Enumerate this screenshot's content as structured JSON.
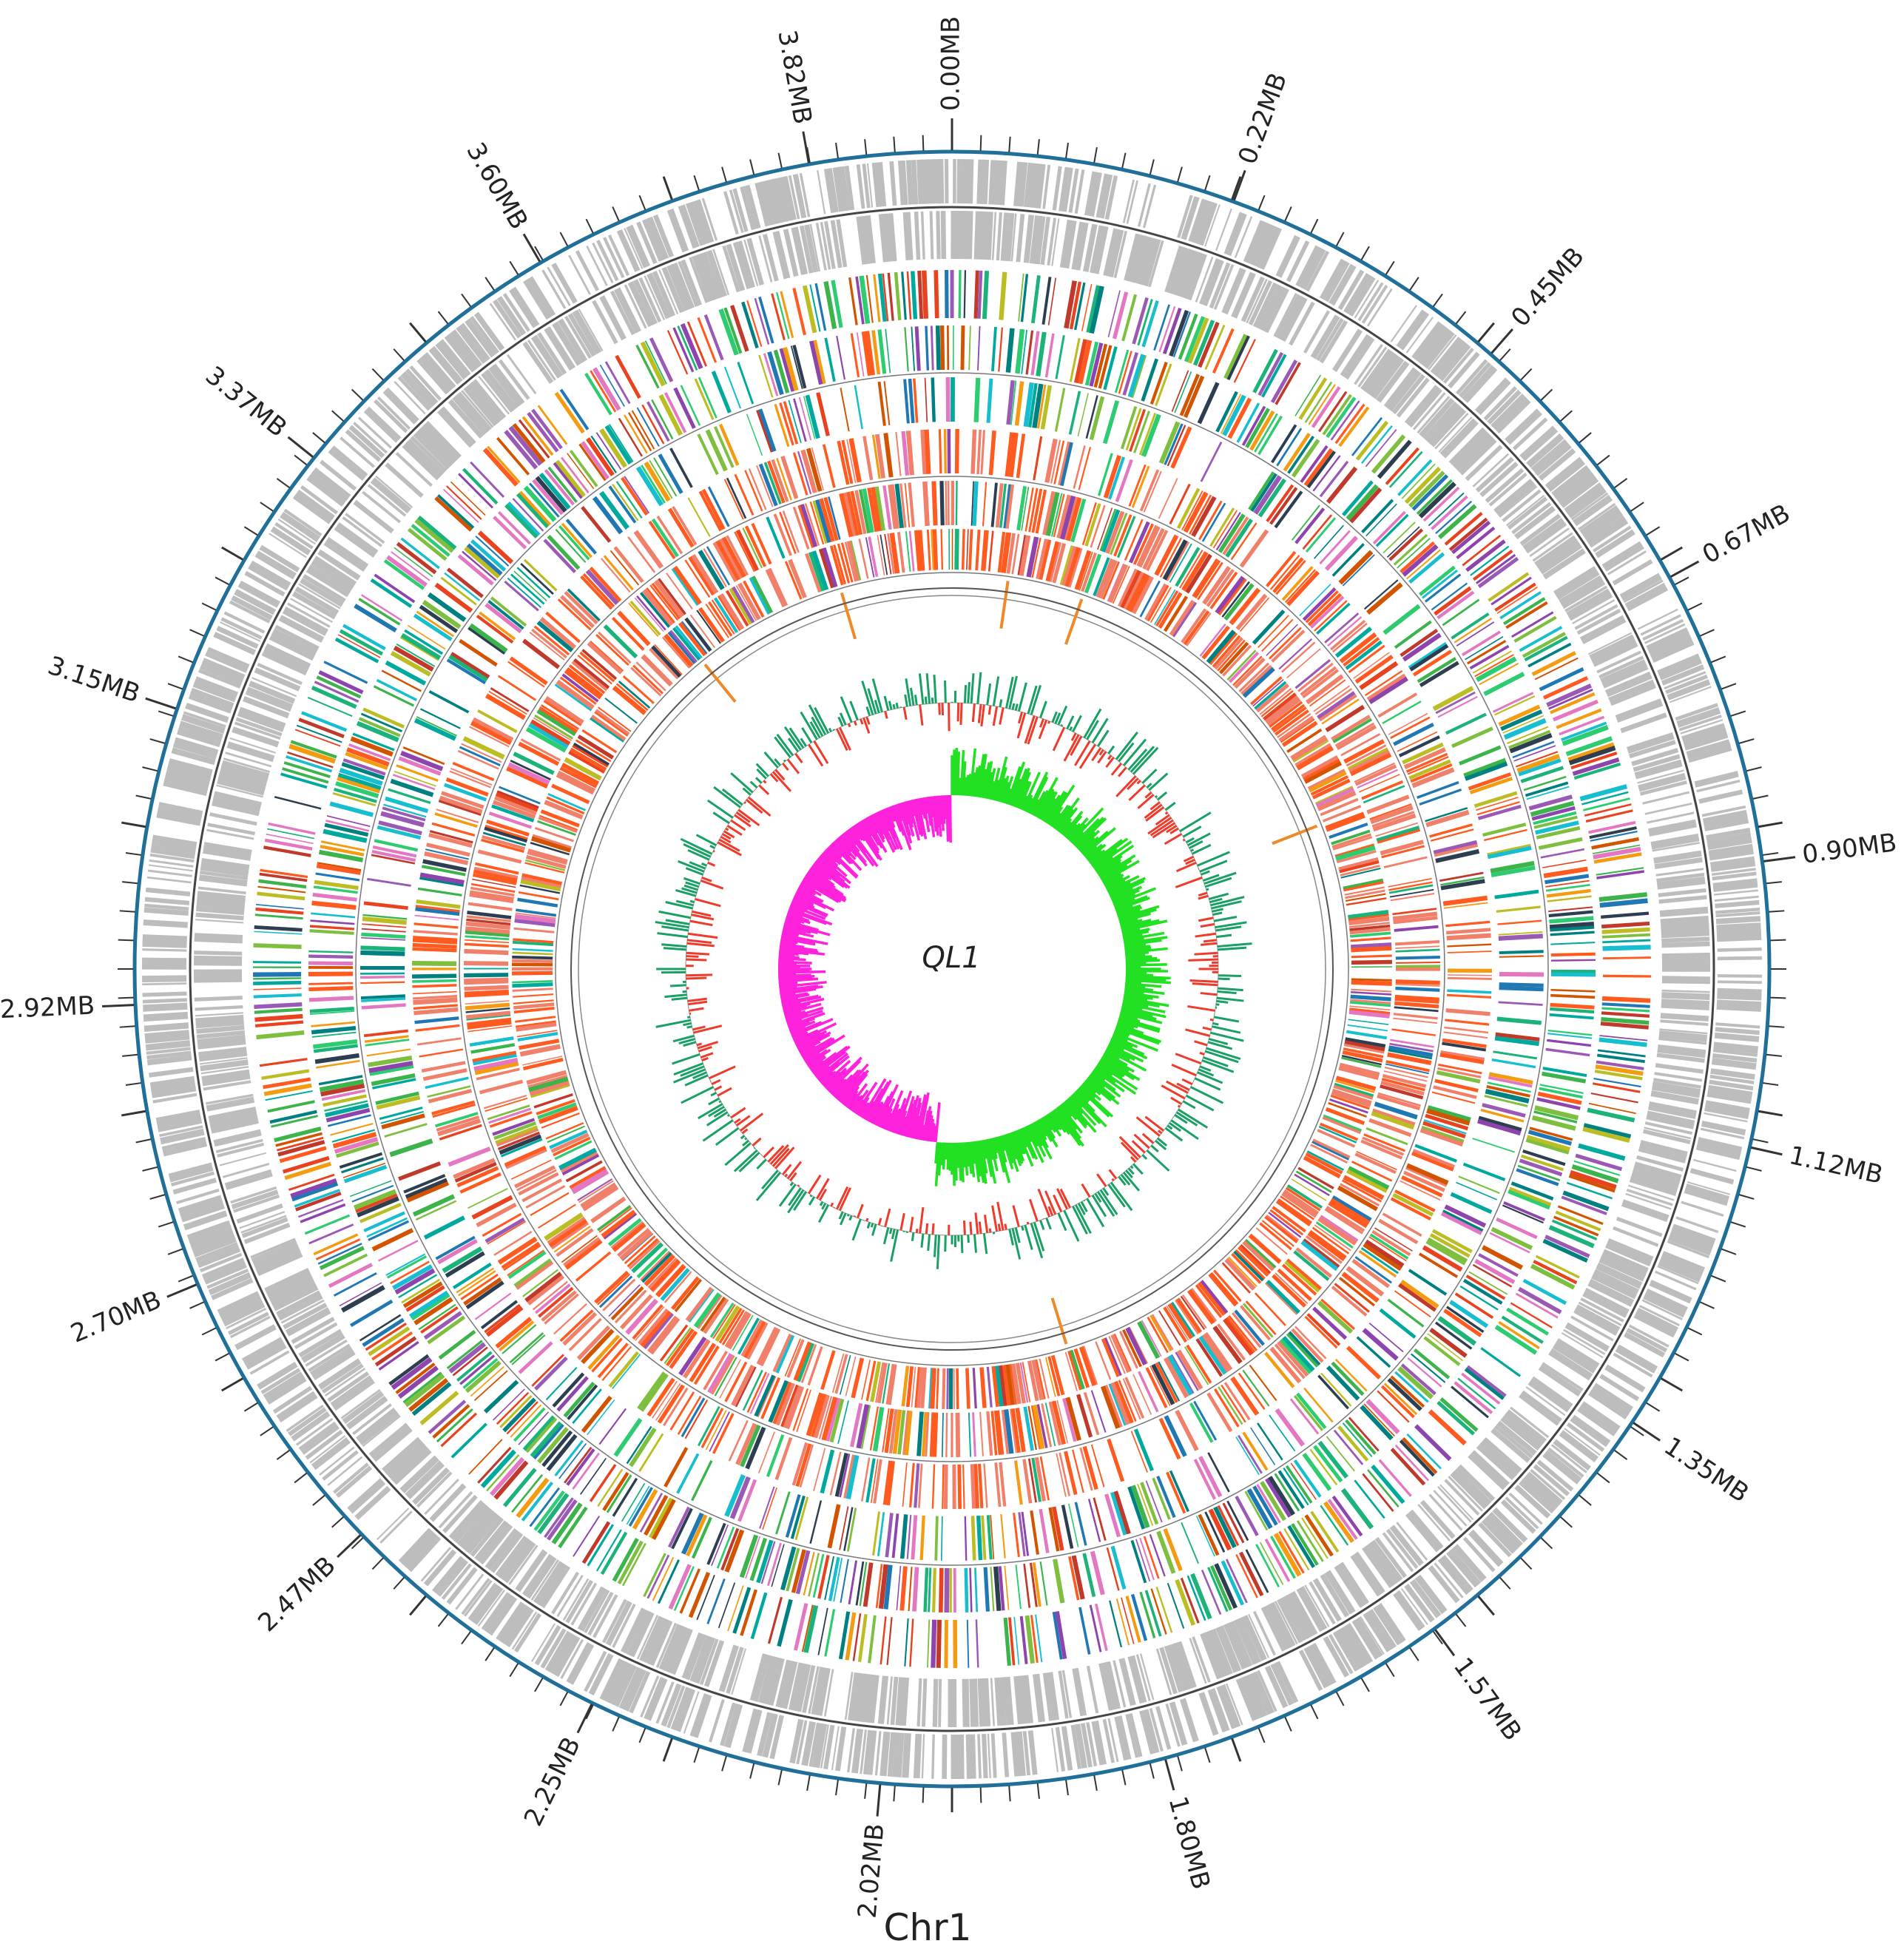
{
  "genome": {
    "center_label": "QL1",
    "chromosome_label": "Chr1",
    "total_length_mb": 3.93,
    "scale_labels": [
      {
        "text": "0.00MB",
        "mb": 0.0
      },
      {
        "text": "0.22MB",
        "mb": 0.22
      },
      {
        "text": "0.45MB",
        "mb": 0.45
      },
      {
        "text": "0.67MB",
        "mb": 0.67
      },
      {
        "text": "0.90MB",
        "mb": 0.9
      },
      {
        "text": "1.12MB",
        "mb": 1.12
      },
      {
        "text": "1.35MB",
        "mb": 1.35
      },
      {
        "text": "1.57MB",
        "mb": 1.57
      },
      {
        "text": "1.80MB",
        "mb": 1.8
      },
      {
        "text": "2.02MB",
        "mb": 2.02
      },
      {
        "text": "2.25MB",
        "mb": 2.25
      },
      {
        "text": "2.47MB",
        "mb": 2.47
      },
      {
        "text": "2.70MB",
        "mb": 2.7
      },
      {
        "text": "2.92MB",
        "mb": 2.92
      },
      {
        "text": "3.15MB",
        "mb": 3.15
      },
      {
        "text": "3.37MB",
        "mb": 3.37
      },
      {
        "text": "3.60MB",
        "mb": 3.6
      },
      {
        "text": "3.82MB",
        "mb": 3.82
      }
    ]
  },
  "colors": {
    "scale_ring": "#1f6f99",
    "gene_tracks": "#bdbdbd",
    "track_baseline": "#444444",
    "gc_content_high": "#1aa065",
    "gc_content_low": "#ee3b2b",
    "gc_skew_positive": "#22e022",
    "gc_skew_negative": "#ff22dd",
    "ncrna_marks": "#ee8a2a",
    "annotation_palette": [
      "#ff5a1f",
      "#e8421f",
      "#1bb37a",
      "#00a99d",
      "#2ecc71",
      "#3cb44b",
      "#c0392b",
      "#8e44ad",
      "#1f77b4",
      "#17becf",
      "#7fbf3f",
      "#d35400",
      "#f39c12",
      "#9b59b6",
      "#2c3e50",
      "#e377c2",
      "#008080",
      "#bcbd22"
    ]
  }
}
